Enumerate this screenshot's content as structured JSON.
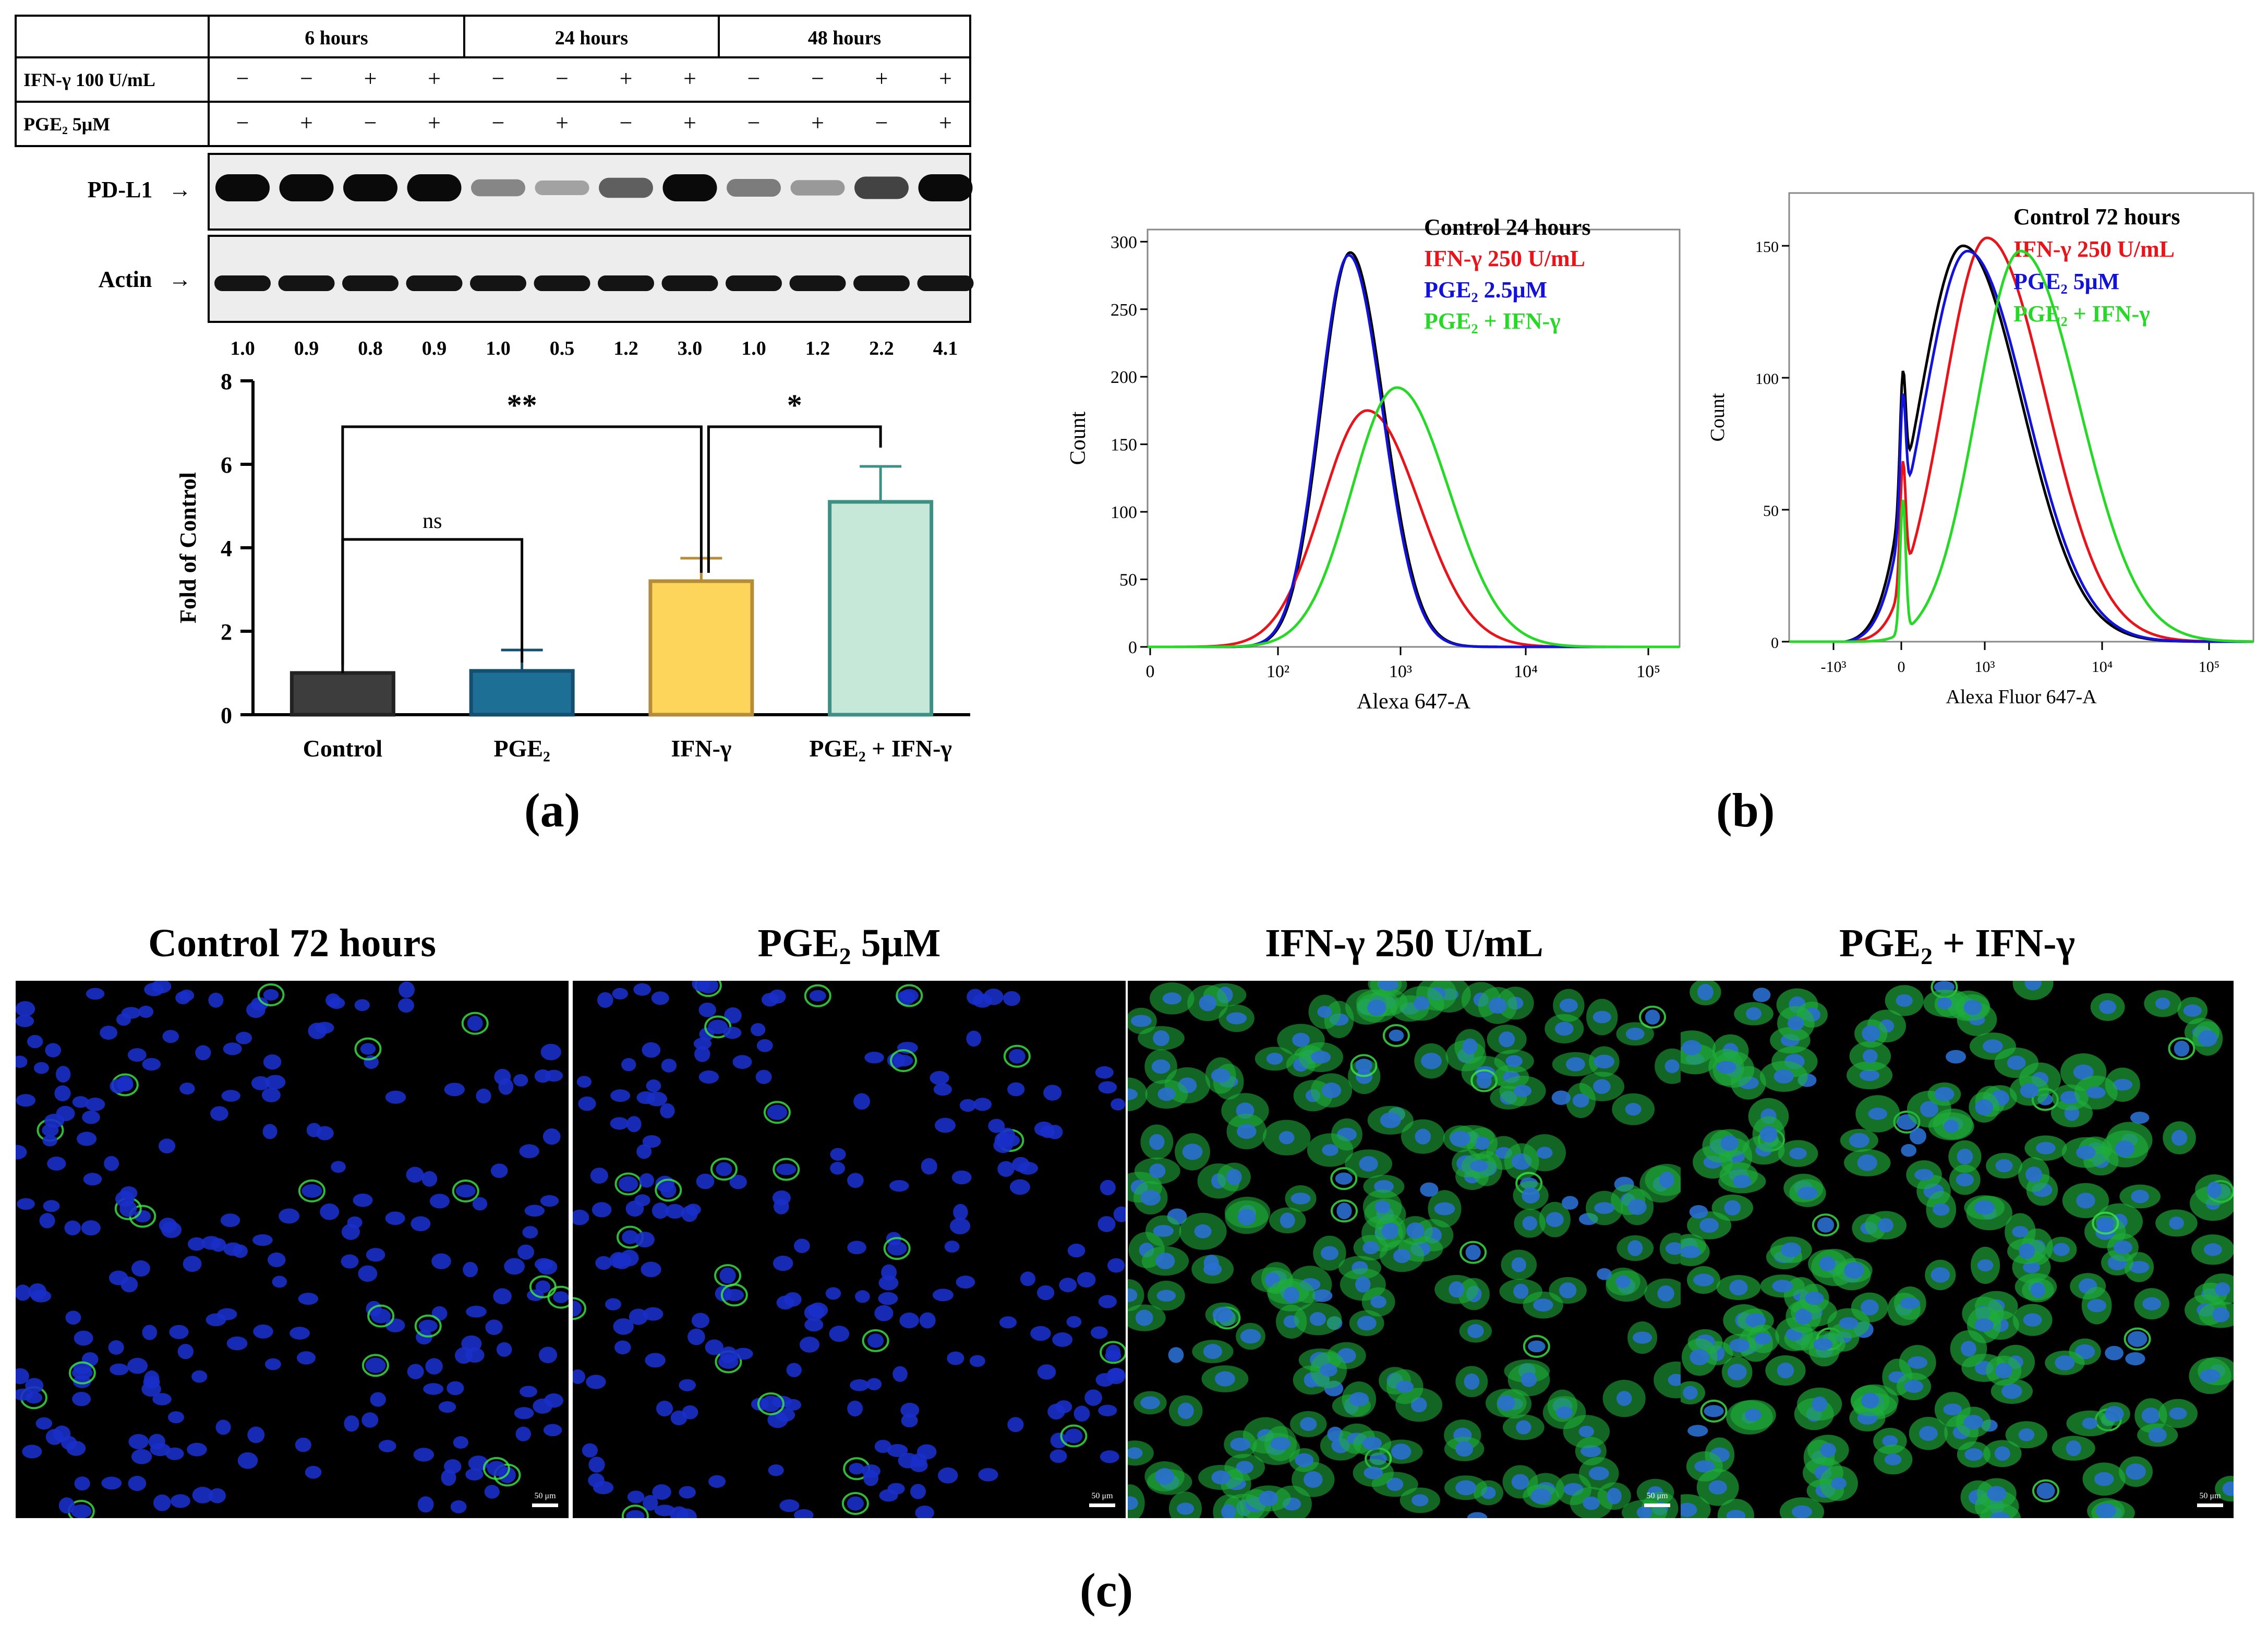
{
  "panel_a": {
    "label": "(a)",
    "blot": {
      "time_groups": [
        "6 hours",
        "24 hours",
        "48 hours"
      ],
      "rows": [
        {
          "label": "IFN-γ 100 U/mL",
          "signs": [
            "−",
            "−",
            "+",
            "+",
            "−",
            "−",
            "+",
            "+",
            "−",
            "−",
            "+",
            "+"
          ]
        },
        {
          "label": "PGE₂ 5μM",
          "signs": [
            "−",
            "+",
            "−",
            "+",
            "−",
            "+",
            "−",
            "+",
            "−",
            "+",
            "−",
            "+"
          ]
        }
      ],
      "bands": [
        "PD-L1",
        "Actin"
      ],
      "band_arrow": "→",
      "pdl1_intensity": [
        1.0,
        1.0,
        1.0,
        1.0,
        0.35,
        0.2,
        0.55,
        1.0,
        0.4,
        0.25,
        0.7,
        1.0
      ],
      "quant": [
        "1.0",
        "0.9",
        "0.8",
        "0.9",
        "1.0",
        "0.5",
        "1.2",
        "3.0",
        "1.0",
        "1.2",
        "2.2",
        "4.1"
      ]
    }
  },
  "panel_b": {
    "label": "(b)"
  },
  "panel_c": {
    "label": "(c)",
    "images": [
      {
        "title": "Control 72 hours",
        "scale": "50 μm",
        "green": 0.15
      },
      {
        "title": "PGE₂ 5μM",
        "scale": "50 μm",
        "green": 0.25
      },
      {
        "title": "IFN-γ 250 U/mL",
        "scale": "50 μm",
        "green": 0.65
      },
      {
        "title": "PGE₂ + IFN-γ",
        "scale": "50 μm",
        "green": 0.85
      }
    ]
  },
  "chart_data": [
    {
      "type": "bar",
      "title": "",
      "xlabel": "",
      "ylabel": "Fold of Control",
      "categories": [
        "Control",
        "PGE₂",
        "IFN-γ",
        "PGE₂ + IFN-γ"
      ],
      "values": [
        1.0,
        1.05,
        3.2,
        5.1
      ],
      "errors": [
        0,
        0.5,
        0.55,
        0.85
      ],
      "colors": [
        "#3d3d3d",
        "#1d6f96",
        "#fdd55a",
        "#c6e8d9"
      ],
      "edge_colors": [
        "#222222",
        "#144f70",
        "#b58d3a",
        "#3e8f84"
      ],
      "ylim": [
        0,
        8
      ],
      "yticks": [
        "0",
        "2",
        "4",
        "6",
        "8"
      ],
      "annotations": [
        {
          "from": "Control",
          "to": "PGE₂",
          "text": "ns"
        },
        {
          "from": "Control",
          "to": "IFN-γ",
          "text": "**"
        },
        {
          "from": "IFN-γ",
          "to": "PGE₂ + IFN-γ",
          "text": "*"
        }
      ]
    },
    {
      "type": "line",
      "title": "",
      "xlabel": "Alexa 647-A",
      "ylabel": "Count",
      "x_scale": "log",
      "xlim": [
        0,
        150000
      ],
      "ylim": [
        0,
        300
      ],
      "yticks": [
        "0",
        "50",
        "100",
        "150",
        "200",
        "250",
        "300"
      ],
      "xticks": [
        "0",
        "10²",
        "10³",
        "10⁴",
        "10⁵"
      ],
      "legend_position": "top-right",
      "series": [
        {
          "name": "Control 24 hours",
          "color": "#000000",
          "peak_x": 380,
          "peak_y": 292
        },
        {
          "name": "IFN-γ 250 U/mL",
          "color": "#e8141c",
          "peak_x": 520,
          "peak_y": 175
        },
        {
          "name": "PGE₂ 2.5μM",
          "color": "#1212d8",
          "peak_x": 370,
          "peak_y": 290
        },
        {
          "name": "PGE₂ + IFN-γ",
          "color": "#27d827",
          "peak_x": 900,
          "peak_y": 192
        }
      ]
    },
    {
      "type": "line",
      "title": "",
      "xlabel": "Alexa Fluor 647-A",
      "ylabel": "Count",
      "x_scale": "biexponential",
      "ylim": [
        0,
        170
      ],
      "yticks": [
        "0",
        "50",
        "100",
        "150"
      ],
      "xticks": [
        "-10³",
        "0",
        "10³",
        "10⁴",
        "10⁵"
      ],
      "legend_position": "top-right",
      "series": [
        {
          "name": "Control 72 hours",
          "color": "#000000",
          "peak_x": 400,
          "peak_y": 150
        },
        {
          "name": "IFN-γ 250 U/mL",
          "color": "#e8141c",
          "peak_x": 750,
          "peak_y": 153
        },
        {
          "name": "PGE₂ 5μM",
          "color": "#1212d8",
          "peak_x": 450,
          "peak_y": 148
        },
        {
          "name": "PGE₂ + IFN-γ",
          "color": "#27d827",
          "peak_x": 1800,
          "peak_y": 148
        }
      ]
    }
  ]
}
